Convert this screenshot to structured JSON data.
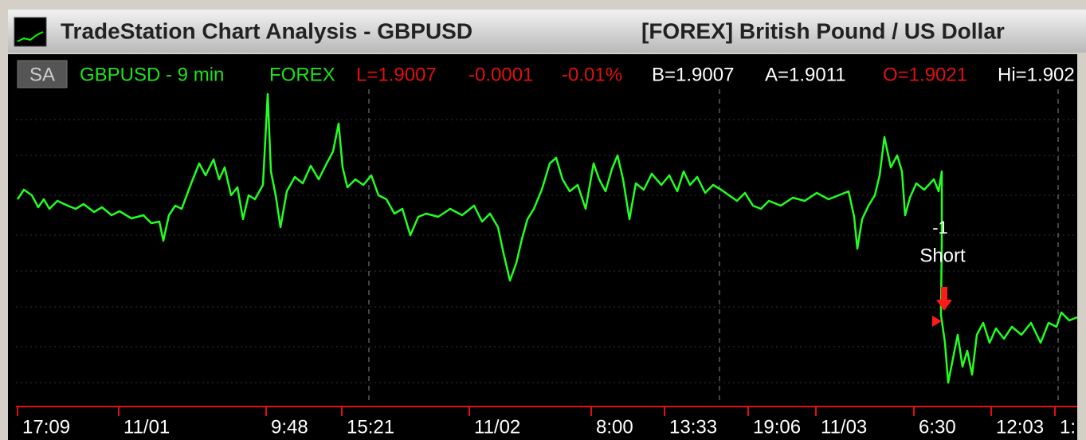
{
  "title_bar": {
    "title": "TradeStation Chart Analysis - GBPUSD",
    "description": "[FOREX] British Pound / US Dollar"
  },
  "info_bar": {
    "badge": "SA",
    "symbol": "GBPUSD - 9 min",
    "exchange": "FOREX",
    "last": "L=1.9007",
    "change": "-0.0001",
    "change_pct": "-0.01%",
    "bid": "B=1.9007",
    "ask": "A=1.9011",
    "open": "O=1.9021",
    "high": "Hi=1.902"
  },
  "annotations": {
    "position": "-1",
    "order": "Short"
  },
  "time_axis": {
    "labels": [
      "17:09",
      "11/01",
      "9:48",
      "15:21",
      "11/02",
      "8:00",
      "13:33",
      "19:06",
      "11/03",
      "6:30",
      "12:03",
      "1:"
    ]
  }
}
